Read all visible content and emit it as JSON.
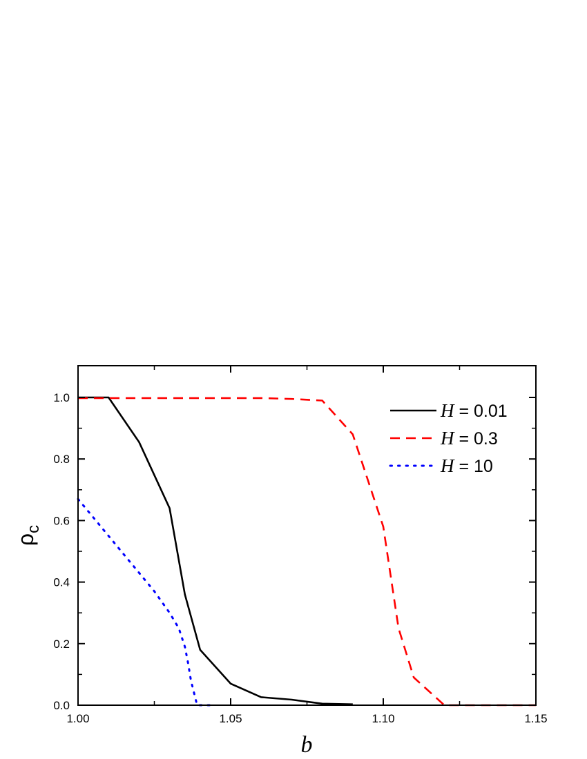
{
  "chart_data": {
    "type": "line",
    "title": "",
    "xlabel": "b",
    "ylabel": "ρc",
    "ylabel_main": "ρ",
    "ylabel_sub": "c",
    "xlim": [
      1.0,
      1.15
    ],
    "ylim": [
      0.0,
      1.1
    ],
    "x_ticks": [
      1.0,
      1.05,
      1.1,
      1.15
    ],
    "x_tick_labels": [
      "1.00",
      "1.05",
      "1.10",
      "1.15"
    ],
    "x_minor_ticks": [
      1.025,
      1.075,
      1.125
    ],
    "y_ticks": [
      0.0,
      0.2,
      0.4,
      0.6,
      0.8,
      1.0
    ],
    "y_tick_labels": [
      "0.0",
      "0.2",
      "0.4",
      "0.6",
      "0.8",
      "1.0"
    ],
    "y_minor_ticks": [
      0.1,
      0.3,
      0.5,
      0.7,
      0.9
    ],
    "grid": false,
    "legend_position": "upper right",
    "series": [
      {
        "name": "H = 0.01",
        "var": "H",
        "value_label": " = 0.01",
        "color": "#000000",
        "style": "solid",
        "x": [
          1.0,
          1.01,
          1.02,
          1.03,
          1.035,
          1.04,
          1.05,
          1.06,
          1.07,
          1.08,
          1.09
        ],
        "y": [
          1.0,
          1.0,
          0.855,
          0.64,
          0.36,
          0.18,
          0.07,
          0.026,
          0.018,
          0.005,
          0.003
        ]
      },
      {
        "name": "H = 0.3",
        "var": "H",
        "value_label": " = 0.3",
        "color": "#ff0000",
        "style": "dashed",
        "x": [
          1.0,
          1.01,
          1.02,
          1.03,
          1.04,
          1.05,
          1.06,
          1.07,
          1.08,
          1.09,
          1.1,
          1.105,
          1.11,
          1.12,
          1.13,
          1.14,
          1.15
        ],
        "y": [
          0.998,
          0.998,
          0.998,
          0.998,
          0.998,
          0.998,
          0.998,
          0.995,
          0.99,
          0.88,
          0.58,
          0.25,
          0.09,
          0.0,
          0.0,
          0.0,
          0.0
        ]
      },
      {
        "name": "H = 10",
        "var": "H",
        "value_label": " = 10",
        "color": "#0000ff",
        "style": "dotted",
        "x": [
          1.0,
          1.005,
          1.01,
          1.015,
          1.02,
          1.025,
          1.03,
          1.033,
          1.035,
          1.036,
          1.037,
          1.0385,
          1.039,
          1.042,
          1.045
        ],
        "y": [
          0.67,
          0.61,
          0.55,
          0.49,
          0.43,
          0.37,
          0.3,
          0.25,
          0.19,
          0.14,
          0.08,
          0.02,
          0.0,
          0.0,
          0.0
        ]
      }
    ]
  }
}
